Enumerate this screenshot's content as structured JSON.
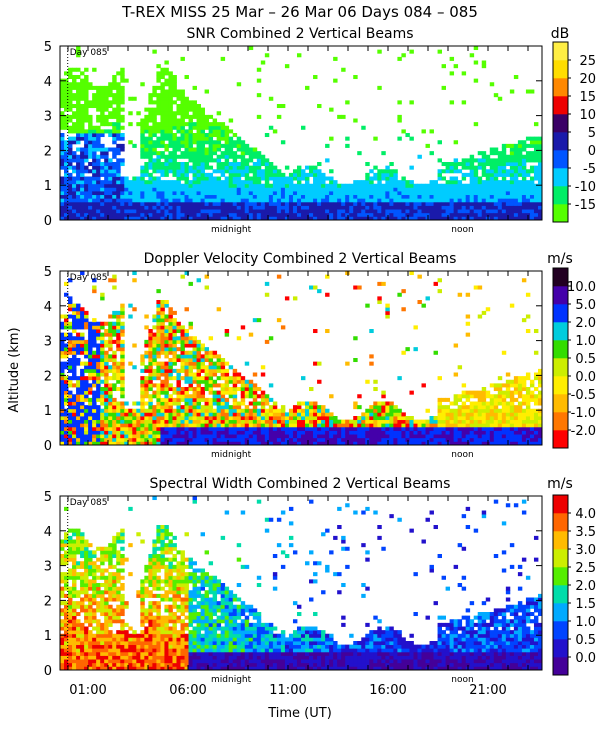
{
  "figure": {
    "title": "T-REX MISS   25 Mar – 26 Mar 06 Days 084 – 085",
    "xlabel": "Time (UT)",
    "ylabel": "Altitude (km)"
  },
  "chart_data": [
    {
      "type": "heatmap",
      "title": "SNR Combined 2 Vertical Beams",
      "unit": "dB",
      "day_marker": "Day 085",
      "midnight_label": "midnight",
      "noon_label": "noon",
      "y_ticks": [
        "0",
        "1",
        "2",
        "3",
        "4",
        "5"
      ],
      "ylim": [
        0,
        5
      ],
      "colorbar_ticks": [
        "-15",
        "-10",
        "-5",
        "0",
        "5",
        "10",
        "15",
        "20",
        "25"
      ],
      "colorbar_colors": [
        "#55ff00",
        "#00ee66",
        "#00ccff",
        "#0055ff",
        "#1a1aaa",
        "#3a0066",
        "#ee0000",
        "#ff8800",
        "#ffdd00",
        "#ffee44"
      ]
    },
    {
      "type": "heatmap",
      "title": "Doppler Velocity Combined 2 Vertical Beams",
      "unit": "m/s",
      "day_marker": "Day 085",
      "midnight_label": "midnight",
      "noon_label": "noon",
      "y_ticks": [
        "0",
        "1",
        "2",
        "3",
        "4",
        "5"
      ],
      "ylim": [
        0,
        5
      ],
      "colorbar_ticks": [
        "-2.0",
        "-1.0",
        "-0.5",
        "0.0",
        "0.5",
        "1.0",
        "2.0",
        "5.0",
        "10.0"
      ],
      "colorbar_colors": [
        "#ff0000",
        "#ff7700",
        "#ffbb00",
        "#ffee00",
        "#ccee00",
        "#33dd00",
        "#00ccdd",
        "#0033ff",
        "#4400aa",
        "#220022"
      ]
    },
    {
      "type": "heatmap",
      "title": "Spectral Width Combined 2 Vertical Beams",
      "unit": "m/s",
      "day_marker": "Day 085",
      "midnight_label": "midnight",
      "noon_label": "noon",
      "y_ticks": [
        "0",
        "1",
        "2",
        "3",
        "4",
        "5"
      ],
      "ylim": [
        0,
        5
      ],
      "x_ticks": [
        "01:00",
        "06:00",
        "11:00",
        "16:00",
        "21:00"
      ],
      "colorbar_ticks": [
        "0.0",
        "0.5",
        "1.0",
        "1.5",
        "2.0",
        "2.5",
        "3.0",
        "3.5",
        "4.0"
      ],
      "colorbar_colors": [
        "#440099",
        "#2211cc",
        "#0044ff",
        "#00aaff",
        "#00ddaa",
        "#55ee00",
        "#ccee00",
        "#ffbb00",
        "#ff6600",
        "#ee0000"
      ]
    }
  ]
}
